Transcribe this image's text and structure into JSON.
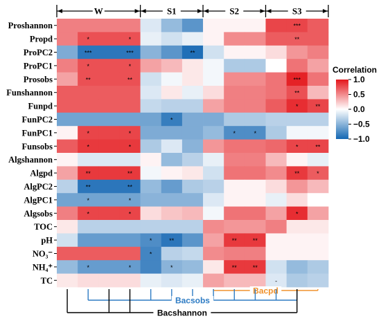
{
  "chart_data": {
    "type": "heatmap",
    "title": "",
    "group_labels": [
      "W",
      "S1",
      "S2",
      "S3"
    ],
    "group_sizes": [
      4,
      3,
      3,
      3
    ],
    "rows": [
      "Proshannon",
      "Propd",
      "ProPC2",
      "ProPC1",
      "Prosobs",
      "Funshannon",
      "Funpd",
      "FunPC2",
      "FunPC1",
      "Funsobs",
      "Algshannon",
      "Algpd",
      "AlgPC2",
      "AlgPC1",
      "Algsobs",
      "TOC",
      "pH",
      "NO₃⁻",
      "NH₄⁺",
      "TC"
    ],
    "colorbar": {
      "title": "Correlation",
      "ticks": [
        1.0,
        0.5,
        0.0,
        -0.5,
        -1.0
      ],
      "tick_labels": [
        "1.0",
        "0.5",
        "0.0",
        "−0.5",
        "−1.0"
      ],
      "colors": {
        "high": "#e4161b",
        "mid": "#ffffff",
        "low": "#1467b3"
      }
    },
    "tree_labels": [
      {
        "text": "Bacpd",
        "color": "#f0922e"
      },
      {
        "text": "Bacsobs",
        "color": "#2e7cc4"
      },
      {
        "text": "Bacshannon",
        "color": "#000000"
      }
    ],
    "values": [
      [
        0.55,
        0.55,
        0.55,
        0.55,
        -0.15,
        -0.45,
        -0.7,
        0.05,
        0.05,
        0.05,
        0.8,
        0.8,
        0.7
      ],
      [
        0.55,
        0.75,
        0.75,
        0.75,
        -0.1,
        -0.2,
        -0.1,
        0.05,
        0.5,
        0.5,
        0.7,
        0.7,
        0.7
      ],
      [
        -0.55,
        -0.9,
        -0.9,
        -0.9,
        -0.5,
        -0.7,
        -0.95,
        -0.2,
        0.05,
        0.05,
        0.15,
        0.45,
        0.55
      ],
      [
        0.55,
        0.75,
        0.75,
        0.75,
        0.4,
        0.3,
        0.1,
        -0.05,
        -0.35,
        -0.35,
        0.0,
        0.6,
        0.4
      ],
      [
        0.4,
        0.75,
        0.75,
        0.75,
        -0.2,
        -0.05,
        0.1,
        -0.05,
        0.5,
        0.5,
        0.6,
        0.95,
        0.6
      ],
      [
        0.7,
        0.7,
        0.7,
        0.7,
        -0.15,
        0.1,
        -0.1,
        0.15,
        0.55,
        0.55,
        0.6,
        0.75,
        0.3
      ],
      [
        0.7,
        0.7,
        0.7,
        0.7,
        -0.25,
        -0.3,
        -0.3,
        0.4,
        0.55,
        0.55,
        0.7,
        0.9,
        0.8
      ],
      [
        -0.6,
        -0.6,
        -0.6,
        -0.6,
        -0.6,
        -0.85,
        -0.55,
        -0.55,
        -0.35,
        -0.35,
        -0.3,
        -0.3,
        -0.3
      ],
      [
        0.05,
        0.8,
        0.8,
        0.8,
        -0.55,
        -0.55,
        -0.55,
        -0.45,
        -0.75,
        -0.75,
        -0.35,
        -0.05,
        -0.05
      ],
      [
        0.7,
        0.85,
        0.85,
        0.85,
        -0.35,
        -0.15,
        -0.5,
        0.45,
        0.6,
        0.6,
        0.65,
        0.8,
        0.8
      ],
      [
        0.05,
        -0.15,
        -0.15,
        -0.15,
        0.05,
        -0.45,
        -0.3,
        -0.1,
        0.55,
        0.55,
        0.3,
        0.05,
        -0.1
      ],
      [
        0.4,
        0.85,
        0.85,
        0.85,
        -0.05,
        0.05,
        0.1,
        -0.2,
        0.6,
        0.6,
        0.5,
        0.85,
        0.7
      ],
      [
        -0.3,
        -0.9,
        -0.9,
        -0.9,
        -0.45,
        -0.65,
        -0.35,
        -0.3,
        0.05,
        0.05,
        0.15,
        0.45,
        0.3
      ],
      [
        -0.6,
        -0.6,
        -0.6,
        -0.6,
        -0.5,
        -0.5,
        -0.5,
        -0.15,
        0.05,
        0.05,
        -0.1,
        0.15,
        0.0
      ],
      [
        0.55,
        0.8,
        0.8,
        0.8,
        0.15,
        0.25,
        0.3,
        -0.05,
        0.6,
        0.6,
        0.4,
        0.9,
        0.4
      ],
      [
        0.1,
        -0.3,
        -0.3,
        -0.3,
        -0.3,
        -0.3,
        -0.3,
        0.5,
        0.45,
        0.45,
        0.55,
        0.1,
        0.1
      ],
      [
        -0.2,
        -0.65,
        -0.65,
        -0.65,
        -0.75,
        -0.9,
        -0.7,
        0.4,
        0.85,
        0.85,
        0.05,
        0.05,
        0.05
      ],
      [
        0.7,
        0.7,
        0.7,
        0.7,
        -0.8,
        -0.3,
        -0.25,
        0.5,
        0.55,
        0.55,
        0.05,
        0.05,
        0.05
      ],
      [
        -0.45,
        -0.65,
        -0.65,
        -0.65,
        -0.8,
        -0.5,
        -0.45,
        0.1,
        0.85,
        0.85,
        -0.2,
        -0.45,
        -0.35
      ],
      [
        0.1,
        0.15,
        0.15,
        0.15,
        -0.1,
        -0.15,
        -0.1,
        0.4,
        0.3,
        0.3,
        -0.15,
        -0.35,
        -0.3
      ]
    ],
    "stars": [
      [
        "",
        "",
        "",
        "",
        "",
        "",
        "",
        "",
        "",
        "",
        "",
        "***",
        ""
      ],
      [
        "",
        "*",
        "",
        "*",
        "",
        "",
        "",
        "",
        "",
        "",
        "",
        "**",
        ""
      ],
      [
        "",
        "***",
        "",
        "***",
        "",
        "",
        "**",
        "",
        "",
        "",
        "",
        "",
        ""
      ],
      [
        "",
        "*",
        "",
        "*",
        "",
        "",
        "",
        "",
        "",
        "",
        "",
        "",
        ""
      ],
      [
        "",
        "**",
        "",
        "**",
        "",
        "",
        "",
        "",
        "",
        "",
        "",
        "***",
        ""
      ],
      [
        "",
        "",
        "",
        "",
        "",
        "",
        "",
        "",
        "",
        "",
        "",
        "**",
        ""
      ],
      [
        "",
        "",
        "",
        "",
        "",
        "",
        "",
        "",
        "",
        "",
        "",
        "*",
        "**"
      ],
      [
        "",
        "",
        "",
        "",
        "",
        "*",
        "",
        "",
        "",
        "",
        "",
        "",
        ""
      ],
      [
        "",
        "*",
        "",
        "*",
        "",
        "",
        "",
        "",
        "*",
        "*",
        "",
        "",
        ""
      ],
      [
        "",
        "*",
        "",
        "*",
        "",
        "",
        "",
        "",
        "",
        "",
        "",
        "*",
        "**"
      ],
      [
        "",
        "",
        "",
        "",
        "",
        "",
        "",
        "",
        "",
        "",
        "",
        "",
        ""
      ],
      [
        "",
        "**",
        "",
        "**",
        "",
        "",
        "",
        "",
        "",
        "",
        "",
        "**",
        "*"
      ],
      [
        "",
        "**",
        "",
        "**",
        "",
        "",
        "",
        "",
        "",
        "",
        "",
        "",
        ""
      ],
      [
        "",
        "*",
        "",
        "*",
        "",
        "",
        "",
        "",
        "",
        "",
        "",
        "",
        ""
      ],
      [
        "",
        "*",
        "",
        "*",
        "",
        "",
        "",
        "",
        "",
        "",
        "",
        "*",
        ""
      ],
      [
        "",
        "",
        "",
        "",
        "",
        "",
        "",
        "",
        "",
        "",
        "",
        "",
        ""
      ],
      [
        "",
        "",
        "",
        "",
        "*",
        "**",
        "",
        "",
        "**",
        "**",
        "",
        "",
        ""
      ],
      [
        "",
        "",
        "",
        "",
        "*",
        "",
        "",
        "",
        "",
        "",
        "",
        "",
        ""
      ],
      [
        "",
        "*",
        "",
        "*",
        "",
        "*",
        "",
        "",
        "**",
        "**",
        "",
        "",
        ""
      ],
      [
        "",
        "",
        "",
        "",
        "",
        "",
        "",
        "",
        "",
        "",
        "-",
        "",
        ""
      ]
    ]
  }
}
